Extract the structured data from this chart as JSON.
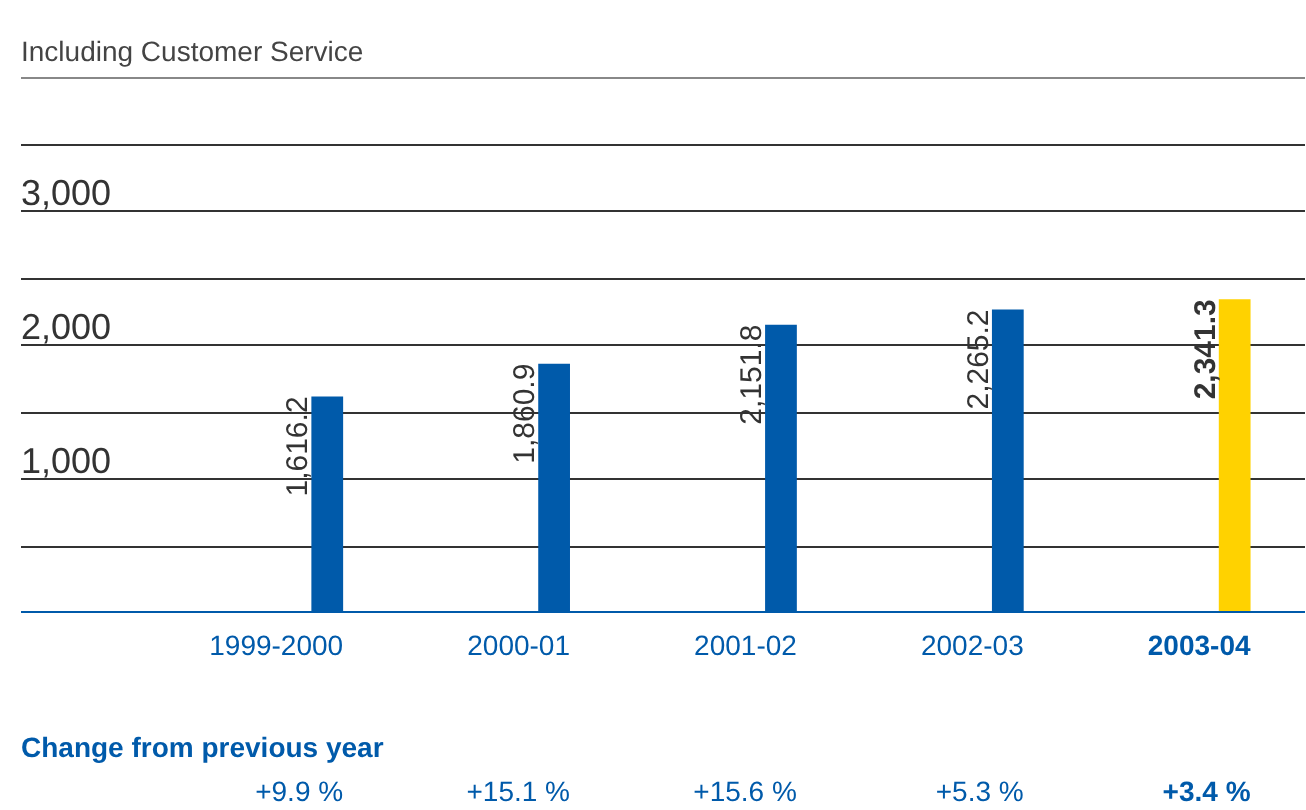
{
  "chart_data": {
    "type": "bar",
    "title": "Including Customer Service",
    "categories": [
      "1999-2000",
      "2000-01",
      "2001-02",
      "2002-03",
      "2003-04"
    ],
    "values": [
      1616.2,
      1860.9,
      2151.8,
      2265.2,
      2341.3
    ],
    "colors": [
      "#005aaa",
      "#005aaa",
      "#005aaa",
      "#005aaa",
      "#ffd200"
    ],
    "value_labels": [
      "1,616.2",
      "1,860.9",
      "2,151.8",
      "2,265.2",
      "2,341.3"
    ],
    "ylim": [
      0,
      4000
    ],
    "yticks": [
      {
        "value": 0,
        "label": null
      },
      {
        "value": 500,
        "label": null
      },
      {
        "value": 1000,
        "label": "1,000"
      },
      {
        "value": 1500,
        "label": null
      },
      {
        "value": 2000,
        "label": "2,000"
      },
      {
        "value": 2500,
        "label": null
      },
      {
        "value": 3000,
        "label": "3,000"
      },
      {
        "value": 3500,
        "label": null
      },
      {
        "value": 4000,
        "label": null
      }
    ],
    "grid": "y",
    "annotations": [
      "Change from previous year",
      "+9.9 %",
      "+15.1 %",
      "+15.6 %",
      "+5.3 %",
      "+3.4 %"
    ]
  }
}
